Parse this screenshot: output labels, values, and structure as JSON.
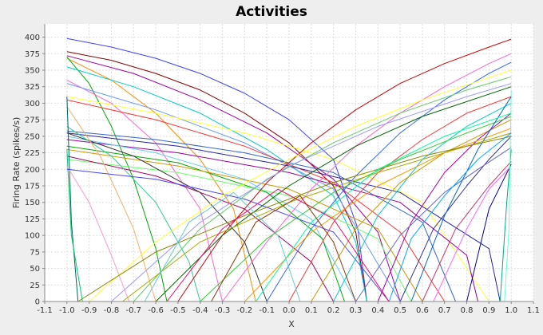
{
  "chart_data": {
    "type": "line",
    "title": "Activities",
    "xlabel": "X",
    "ylabel": "Firing Rate (spikes/s)",
    "xlim": [
      -1.1,
      1.1
    ],
    "ylim": [
      0,
      420
    ],
    "xticks": [
      "-1.1",
      "-1.0",
      "-0.9",
      "-0.8",
      "-0.7",
      "-0.6",
      "-0.5",
      "-0.4",
      "-0.3",
      "-0.2",
      "-0.1",
      "0.0",
      "0.1",
      "0.2",
      "0.3",
      "0.4",
      "0.5",
      "0.6",
      "0.7",
      "0.8",
      "0.9",
      "1.0",
      "1.1"
    ],
    "yticks": [
      "0",
      "25",
      "50",
      "75",
      "100",
      "125",
      "150",
      "175",
      "200",
      "225",
      "250",
      "275",
      "300",
      "325",
      "350",
      "375",
      "400"
    ],
    "grid": true,
    "series": [
      {
        "color": "#4040ff",
        "x": [
          -1.0,
          -0.8,
          -0.6,
          -0.4,
          -0.2,
          0.0,
          0.2,
          0.31,
          0.35
        ],
        "y": [
          398,
          385,
          368,
          345,
          315,
          275,
          215,
          110,
          0
        ]
      },
      {
        "color": "#8b0000",
        "x": [
          -1.0,
          -0.8,
          -0.6,
          -0.4,
          -0.2,
          0.0,
          0.2,
          0.3,
          0.35
        ],
        "y": [
          378,
          365,
          345,
          320,
          285,
          240,
          175,
          105,
          0
        ]
      },
      {
        "color": "#a000a0",
        "x": [
          -1.0,
          -0.7,
          -0.4,
          -0.1,
          0.2,
          0.4,
          0.5
        ],
        "y": [
          372,
          345,
          305,
          255,
          185,
          105,
          0
        ]
      },
      {
        "color": "#ff8c00",
        "x": [
          -1.0,
          -0.8,
          -0.6,
          -0.4,
          -0.25,
          -0.15
        ],
        "y": [
          368,
          335,
          285,
          215,
          140,
          0
        ]
      },
      {
        "color": "#00aa00",
        "x": [
          -1.0,
          -0.9,
          -0.8,
          -0.7,
          -0.6,
          -0.55
        ],
        "y": [
          370,
          330,
          265,
          185,
          80,
          0
        ]
      },
      {
        "color": "#00cccc",
        "x": [
          -1.0,
          -0.7,
          -0.4,
          -0.1,
          0.2,
          0.3,
          0.35
        ],
        "y": [
          355,
          325,
          285,
          230,
          160,
          90,
          0
        ]
      },
      {
        "color": "#ff66cc",
        "x": [
          -1.0,
          -0.8,
          -0.6,
          -0.4,
          -0.3
        ],
        "y": [
          335,
          300,
          240,
          140,
          0
        ]
      },
      {
        "color": "#6699ff",
        "x": [
          -1.0,
          -0.6,
          -0.2,
          0.2,
          0.5
        ],
        "y": [
          330,
          290,
          240,
          170,
          0
        ]
      },
      {
        "color": "#ffff33",
        "x": [
          -1.0,
          -0.6,
          -0.2,
          0.2,
          0.6,
          0.9
        ],
        "y": [
          310,
          285,
          255,
          215,
          150,
          0
        ]
      },
      {
        "color": "#ff3333",
        "x": [
          -1.0,
          -0.6,
          -0.2,
          0.2,
          0.5,
          0.7
        ],
        "y": [
          305,
          275,
          235,
          180,
          105,
          0
        ]
      },
      {
        "color": "#3366cc",
        "x": [
          -1.0,
          -0.6,
          -0.2,
          0.2,
          0.6,
          0.75
        ],
        "y": [
          258,
          245,
          225,
          195,
          120,
          0
        ]
      },
      {
        "color": "#2222aa",
        "x": [
          -1.0,
          -0.5,
          0.0,
          0.5,
          0.9,
          0.95
        ],
        "y": [
          255,
          235,
          205,
          165,
          80,
          0
        ]
      },
      {
        "color": "#990099",
        "x": [
          -1.0,
          -0.5,
          0.0,
          0.5,
          0.8,
          0.85
        ],
        "y": [
          245,
          225,
          195,
          150,
          70,
          0
        ]
      },
      {
        "color": "#66ccff",
        "x": [
          -1.0,
          -0.6,
          -0.2,
          0.1,
          0.3
        ],
        "y": [
          250,
          225,
          185,
          125,
          0
        ]
      },
      {
        "color": "#00aa00",
        "x": [
          -1.0,
          -0.5,
          -0.1,
          0.15,
          0.25
        ],
        "y": [
          235,
          210,
          165,
          95,
          0
        ]
      },
      {
        "color": "#cc9900",
        "x": [
          -1.0,
          -0.5,
          0.0,
          0.4,
          0.6
        ],
        "y": [
          230,
          205,
          170,
          110,
          0
        ]
      },
      {
        "color": "#66ff66",
        "x": [
          -1.0,
          -0.5,
          0.0,
          0.4,
          0.55
        ],
        "y": [
          215,
          195,
          160,
          95,
          0
        ]
      },
      {
        "color": "#aa0066",
        "x": [
          -1.0,
          -0.6,
          -0.2,
          0.1,
          0.2
        ],
        "y": [
          220,
          190,
          140,
          60,
          0
        ]
      },
      {
        "color": "#333333",
        "x": [
          -1.0,
          -0.7,
          -0.4,
          -0.2,
          -0.1
        ],
        "y": [
          255,
          220,
          165,
          90,
          0
        ]
      },
      {
        "color": "#33cc99",
        "x": [
          -1.0,
          -0.8,
          -0.6,
          -0.45,
          -0.4
        ],
        "y": [
          265,
          220,
          150,
          60,
          0
        ]
      },
      {
        "color": "#ffaa66",
        "x": [
          -1.0,
          -0.85,
          -0.7,
          -0.6
        ],
        "y": [
          295,
          220,
          110,
          0
        ]
      },
      {
        "color": "#006666",
        "x": [
          -1.0,
          -0.98,
          -0.95
        ],
        "y": [
          310,
          120,
          0
        ]
      },
      {
        "color": "#00cc66",
        "x": [
          -1.0,
          -0.98,
          -0.93
        ],
        "y": [
          230,
          100,
          0
        ]
      },
      {
        "color": "#ff99cc",
        "x": [
          -1.0,
          -0.9,
          -0.8,
          -0.72
        ],
        "y": [
          205,
          150,
          70,
          0
        ]
      },
      {
        "color": "#4444ff",
        "x": [
          -1.0,
          -0.6,
          -0.2,
          0.2,
          0.45
        ],
        "y": [
          200,
          185,
          155,
          105,
          0
        ]
      },
      {
        "color": "#cc0000",
        "x": [
          -0.5,
          -0.3,
          -0.1,
          0.1,
          0.3,
          0.5,
          0.7,
          0.9,
          1.0
        ],
        "y": [
          0,
          100,
          180,
          240,
          290,
          330,
          360,
          385,
          397
        ]
      },
      {
        "color": "#ff66cc",
        "x": [
          -0.3,
          -0.1,
          0.1,
          0.3,
          0.5,
          0.7,
          0.9,
          1.0
        ],
        "y": [
          0,
          90,
          170,
          235,
          285,
          325,
          360,
          375
        ]
      },
      {
        "color": "#3366ff",
        "x": [
          -0.1,
          0.1,
          0.3,
          0.5,
          0.7,
          0.9,
          1.0
        ],
        "y": [
          0,
          110,
          190,
          255,
          305,
          345,
          362
        ]
      },
      {
        "color": "#66cc66",
        "x": [
          -0.7,
          -0.4,
          -0.1,
          0.2,
          0.5,
          0.8,
          1.0
        ],
        "y": [
          0,
          110,
          185,
          240,
          285,
          320,
          340
        ]
      },
      {
        "color": "#ffff33",
        "x": [
          -0.9,
          -0.6,
          -0.3,
          0.0,
          0.3,
          0.6,
          1.0
        ],
        "y": [
          0,
          90,
          160,
          215,
          265,
          305,
          350
        ]
      },
      {
        "color": "#006600",
        "x": [
          -0.6,
          -0.3,
          0.0,
          0.3,
          0.6,
          1.0
        ],
        "y": [
          0,
          100,
          175,
          235,
          280,
          325
        ]
      },
      {
        "color": "#9999ff",
        "x": [
          -0.8,
          -0.4,
          0.0,
          0.4,
          0.8,
          1.0
        ],
        "y": [
          0,
          120,
          205,
          265,
          310,
          330
        ]
      },
      {
        "color": "#ff3333",
        "x": [
          0.0,
          0.2,
          0.4,
          0.6,
          0.8,
          1.0
        ],
        "y": [
          0,
          120,
          195,
          245,
          285,
          310
        ]
      },
      {
        "color": "#00cccc",
        "x": [
          0.2,
          0.4,
          0.6,
          0.8,
          1.0
        ],
        "y": [
          0,
          130,
          215,
          265,
          300
        ]
      },
      {
        "color": "#cc9900",
        "x": [
          0.1,
          0.3,
          0.5,
          0.7,
          1.0
        ],
        "y": [
          0,
          110,
          180,
          225,
          275
        ]
      },
      {
        "color": "#aa00aa",
        "x": [
          0.4,
          0.55,
          0.7,
          0.85,
          1.0
        ],
        "y": [
          0,
          120,
          195,
          245,
          285
        ]
      },
      {
        "color": "#333399",
        "x": [
          0.5,
          0.65,
          0.8,
          0.9,
          1.0
        ],
        "y": [
          0,
          110,
          175,
          215,
          250
        ]
      },
      {
        "color": "#33cc33",
        "x": [
          -0.4,
          -0.1,
          0.2,
          0.5,
          0.8,
          1.0
        ],
        "y": [
          0,
          95,
          165,
          215,
          255,
          280
        ]
      },
      {
        "color": "#ff9900",
        "x": [
          -0.2,
          0.1,
          0.4,
          0.7,
          1.0
        ],
        "y": [
          0,
          105,
          175,
          225,
          262
        ]
      },
      {
        "color": "#6666cc",
        "x": [
          0.3,
          0.5,
          0.7,
          0.85,
          1.0
        ],
        "y": [
          0,
          100,
          165,
          200,
          233
        ]
      },
      {
        "color": "#cc3366",
        "x": [
          0.6,
          0.75,
          0.9,
          1.0
        ],
        "y": [
          0,
          110,
          175,
          212
        ]
      },
      {
        "color": "#0000aa",
        "x": [
          0.8,
          0.9,
          1.0
        ],
        "y": [
          0,
          140,
          208
        ]
      },
      {
        "color": "#ff66ff",
        "x": [
          0.65,
          0.8,
          0.9,
          1.0
        ],
        "y": [
          0,
          110,
          170,
          205
        ]
      },
      {
        "color": "#00aa88",
        "x": [
          0.95,
          0.98,
          1.0
        ],
        "y": [
          0,
          150,
          230
        ]
      },
      {
        "color": "#66ffcc",
        "x": [
          0.97,
          0.99,
          1.0
        ],
        "y": [
          0,
          110,
          320
        ]
      },
      {
        "color": "#0066cc",
        "x": [
          0.55,
          0.7,
          0.85,
          1.0
        ],
        "y": [
          0,
          130,
          230,
          310
        ]
      },
      {
        "color": "#aaaa00",
        "x": [
          -0.75,
          -0.4,
          0.0,
          0.4,
          0.8,
          1.0
        ],
        "y": [
          0,
          90,
          150,
          195,
          235,
          255
        ]
      },
      {
        "color": "#888800",
        "x": [
          -0.95,
          -0.6,
          -0.2,
          0.2,
          0.6,
          1.0
        ],
        "y": [
          0,
          75,
          130,
          180,
          220,
          250
        ]
      },
      {
        "color": "#00aaff",
        "x": [
          0.45,
          0.55,
          0.7,
          0.85,
          1.0
        ],
        "y": [
          0,
          95,
          160,
          215,
          255
        ]
      },
      {
        "color": "#00ff99",
        "x": [
          -0.15,
          0.1,
          0.4,
          0.7,
          1.0
        ],
        "y": [
          0,
          120,
          200,
          250,
          285
        ]
      },
      {
        "color": "#ff0066",
        "x": [
          -0.55,
          -0.3,
          -0.05,
          0.2,
          0.45
        ],
        "y": [
          0,
          110,
          170,
          125,
          0
        ]
      },
      {
        "color": "#993300",
        "x": [
          -0.35,
          -0.15,
          0.05,
          0.2,
          0.3
        ],
        "y": [
          0,
          120,
          160,
          90,
          0
        ]
      },
      {
        "color": "#66cccc",
        "x": [
          -0.65,
          -0.45,
          -0.25,
          -0.05,
          0.05
        ],
        "y": [
          0,
          120,
          165,
          100,
          0
        ]
      }
    ]
  }
}
